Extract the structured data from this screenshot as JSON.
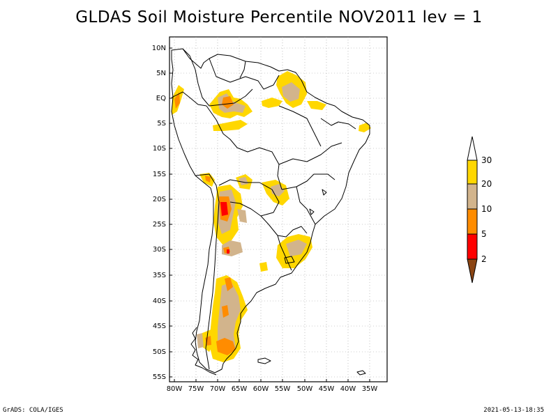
{
  "title": "GLDAS Soil Moisture Percentile NOV2011 lev = 1",
  "footer_left": "GrADS: COLA/IGES",
  "footer_right": "2021-05-13-18:35",
  "map": {
    "lat_labels": [
      "10N",
      "5N",
      "EQ",
      "5S",
      "10S",
      "15S",
      "20S",
      "25S",
      "30S",
      "35S",
      "40S",
      "45S",
      "50S",
      "55S"
    ],
    "lon_labels": [
      "80W",
      "75W",
      "70W",
      "65W",
      "60W",
      "55W",
      "50W",
      "45W",
      "40W",
      "35W"
    ],
    "grid": true
  },
  "legend": {
    "labels": [
      "2",
      "5",
      "10",
      "20",
      "30"
    ],
    "colors": {
      "below2": "#8B4513",
      "2to5": "#ff0000",
      "5to10": "#ff8c00",
      "10to20": "#d2b48c",
      "20to30": "#ffd700",
      "above30": "#ffffff"
    }
  }
}
